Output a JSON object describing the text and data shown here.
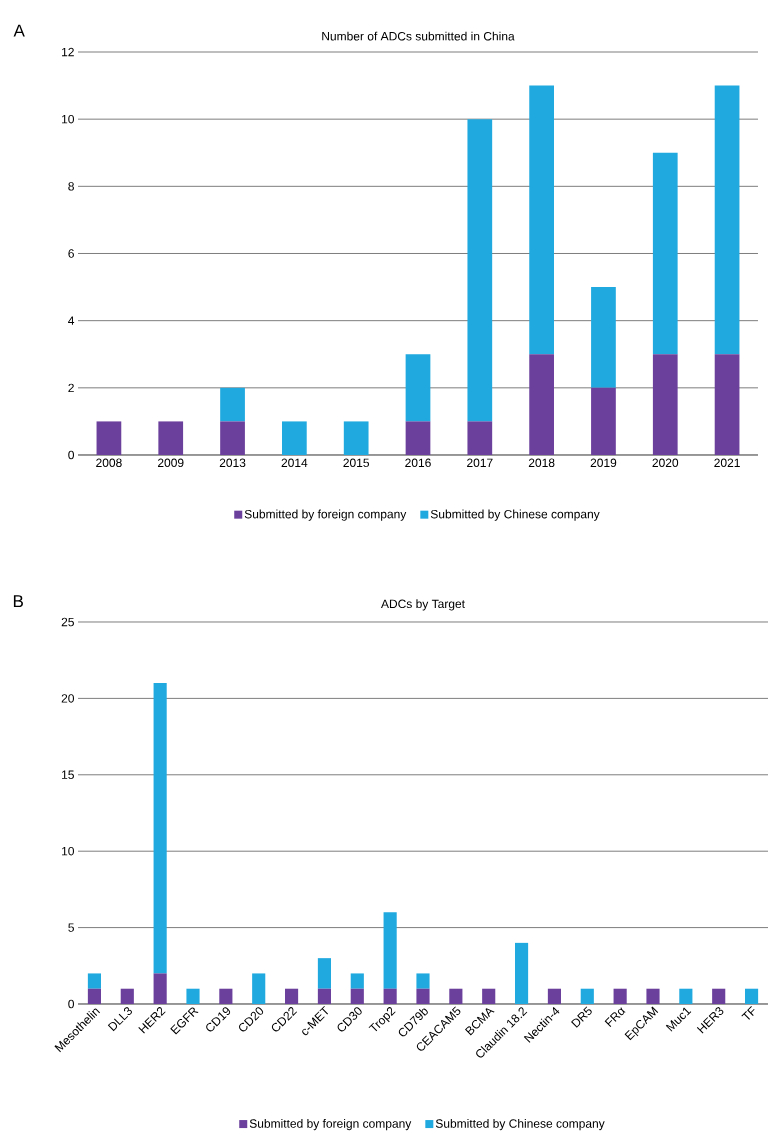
{
  "chart_data": [
    {
      "type": "bar",
      "title": "Number of ADCs submitted in China",
      "annotations": [
        "A"
      ],
      "stacked": true,
      "grid": "y",
      "legend": "bottom",
      "categories": [
        "2008",
        "2009",
        "2013",
        "2014",
        "2015",
        "2016",
        "2017",
        "2018",
        "2019",
        "2020",
        "2021"
      ],
      "ylim": [
        0,
        12
      ],
      "yticks": [
        0,
        2,
        4,
        6,
        8,
        10,
        12
      ],
      "series": [
        {
          "name": "Submitted by foreign company",
          "color": "#6b3f9c",
          "values": [
            1,
            1,
            1,
            0,
            0,
            1,
            1,
            3,
            2,
            3,
            3
          ]
        },
        {
          "name": "Submitted by Chinese company",
          "color": "#1fa9df",
          "values": [
            0,
            0,
            1,
            1,
            1,
            2,
            9,
            8,
            3,
            6,
            8
          ]
        }
      ]
    },
    {
      "type": "bar",
      "title": "ADCs by Target",
      "annotations": [
        "B"
      ],
      "stacked": true,
      "grid": "y",
      "legend": "bottom",
      "categories": [
        "Mesothelin",
        "DLL3",
        "HER2",
        "EGFR",
        "CD19",
        "CD20",
        "CD22",
        "c-MET",
        "CD30",
        "Trop2",
        "CD79b",
        "CEACAM5",
        "BCMA",
        "Claudin 18.2",
        "Nectin-4",
        "DR5",
        "FRα",
        "EpCAM",
        "Muc1",
        "HER3",
        "TF"
      ],
      "ylim": [
        0,
        25
      ],
      "yticks": [
        0,
        5,
        10,
        15,
        20,
        25
      ],
      "series": [
        {
          "name": "Submitted by foreign company",
          "color": "#6b3f9c",
          "values": [
            1,
            1,
            2,
            0,
            1,
            0,
            1,
            1,
            1,
            1,
            1,
            1,
            1,
            0,
            1,
            0,
            1,
            1,
            0,
            1,
            0
          ]
        },
        {
          "name": "Submitted by Chinese company",
          "color": "#1fa9df",
          "values": [
            1,
            0,
            19,
            1,
            0,
            2,
            0,
            2,
            1,
            5,
            1,
            0,
            0,
            4,
            0,
            1,
            0,
            0,
            1,
            0,
            1
          ]
        }
      ]
    }
  ]
}
